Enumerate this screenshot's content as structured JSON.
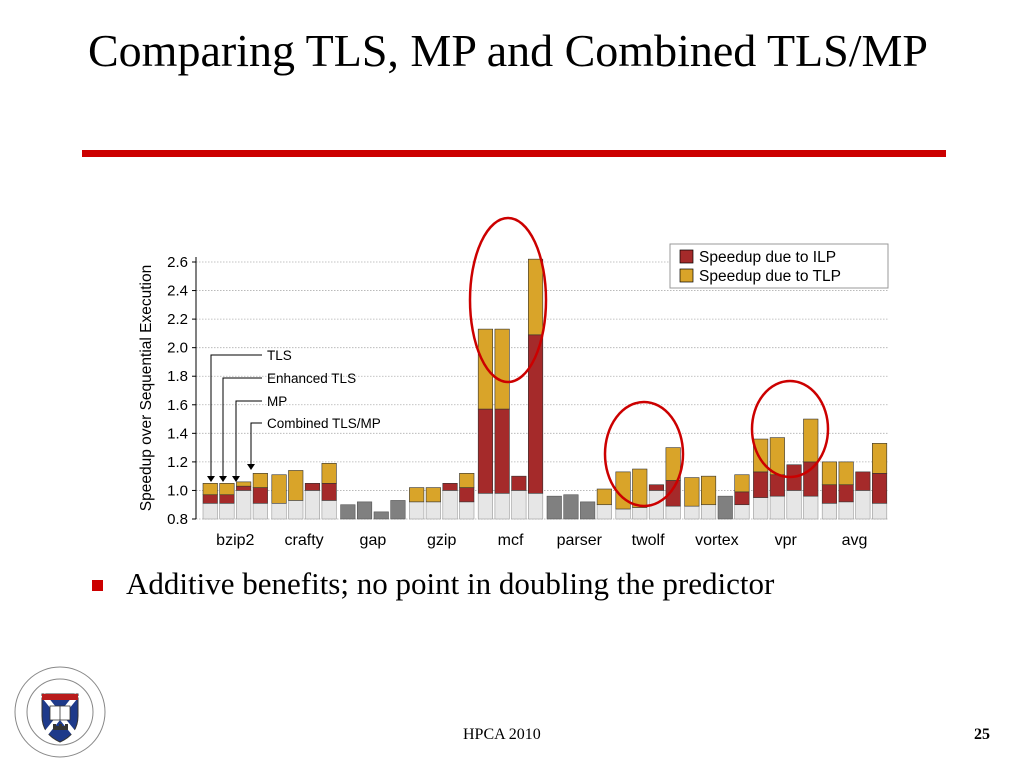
{
  "slide": {
    "title": "Comparing TLS, MP and Combined TLS/MP",
    "bullet": "Additive benefits; no point in doubling the predictor",
    "footer": "HPCA 2010",
    "page_number": "25"
  },
  "colors": {
    "accent": "#cc0000",
    "ilp": "#a52a2a",
    "tlp": "#d9a429",
    "base": "#e6e6e6",
    "gray": "#808080",
    "highlight": "#cc0000"
  },
  "chart_data": {
    "type": "bar",
    "ylabel": "Speedup over Sequential Execution",
    "ylim": [
      0.8,
      2.7
    ],
    "yticks": [
      0.8,
      1.0,
      1.2,
      1.4,
      1.6,
      1.8,
      2.0,
      2.2,
      2.4,
      2.6
    ],
    "grid": true,
    "legend_position": "top-right",
    "legend": [
      "Speedup due to ILP",
      "Speedup due to TLP"
    ],
    "bar_config_labels": [
      "TLS",
      "Enhanced TLS",
      "MP",
      "Combined TLS/MP"
    ],
    "categories": [
      "bzip2",
      "crafty",
      "gap",
      "gzip",
      "mcf",
      "parser",
      "twolf",
      "vortex",
      "vpr",
      "avg"
    ],
    "bars": [
      [
        [
          0.91,
          0.97,
          1.05,
          false
        ],
        [
          0.91,
          0.97,
          1.05,
          false
        ],
        [
          1.0,
          1.03,
          1.06,
          false
        ],
        [
          0.91,
          1.02,
          1.12,
          false
        ]
      ],
      [
        [
          0.91,
          0.91,
          1.11,
          false
        ],
        [
          0.93,
          0.93,
          1.14,
          false
        ],
        [
          1.0,
          1.05,
          1.05,
          false
        ],
        [
          0.93,
          1.05,
          1.19,
          false
        ]
      ],
      [
        [
          0.9,
          0.9,
          0.9,
          true
        ],
        [
          0.92,
          0.92,
          0.92,
          true
        ],
        [
          0.85,
          0.85,
          0.85,
          true
        ],
        [
          0.93,
          0.93,
          0.93,
          true
        ]
      ],
      [
        [
          0.92,
          0.92,
          1.02,
          false
        ],
        [
          0.92,
          0.92,
          1.02,
          false
        ],
        [
          1.0,
          1.05,
          1.05,
          false
        ],
        [
          0.92,
          1.02,
          1.12,
          false
        ]
      ],
      [
        [
          0.98,
          1.57,
          2.13,
          false
        ],
        [
          0.98,
          1.57,
          2.13,
          false
        ],
        [
          1.0,
          1.1,
          1.1,
          false
        ],
        [
          0.98,
          2.09,
          2.62,
          false
        ]
      ],
      [
        [
          0.96,
          0.96,
          0.96,
          true
        ],
        [
          0.97,
          0.97,
          0.97,
          true
        ],
        [
          0.92,
          0.92,
          0.92,
          true
        ],
        [
          0.9,
          0.9,
          1.01,
          false
        ]
      ],
      [
        [
          0.87,
          0.87,
          1.13,
          false
        ],
        [
          0.88,
          0.88,
          1.15,
          false
        ],
        [
          1.0,
          1.04,
          1.04,
          false
        ],
        [
          0.89,
          1.07,
          1.3,
          false
        ]
      ],
      [
        [
          0.89,
          0.89,
          1.09,
          false
        ],
        [
          0.9,
          0.9,
          1.1,
          false
        ],
        [
          0.96,
          0.96,
          0.96,
          true
        ],
        [
          0.9,
          0.99,
          1.11,
          false
        ]
      ],
      [
        [
          0.95,
          1.13,
          1.36,
          false
        ],
        [
          0.96,
          1.11,
          1.37,
          false
        ],
        [
          1.0,
          1.18,
          1.18,
          false
        ],
        [
          0.96,
          1.2,
          1.5,
          false
        ]
      ],
      [
        [
          0.91,
          1.04,
          1.2,
          false
        ],
        [
          0.92,
          1.04,
          1.2,
          false
        ],
        [
          1.0,
          1.13,
          1.13,
          false
        ],
        [
          0.91,
          1.12,
          1.33,
          false
        ]
      ]
    ]
  }
}
